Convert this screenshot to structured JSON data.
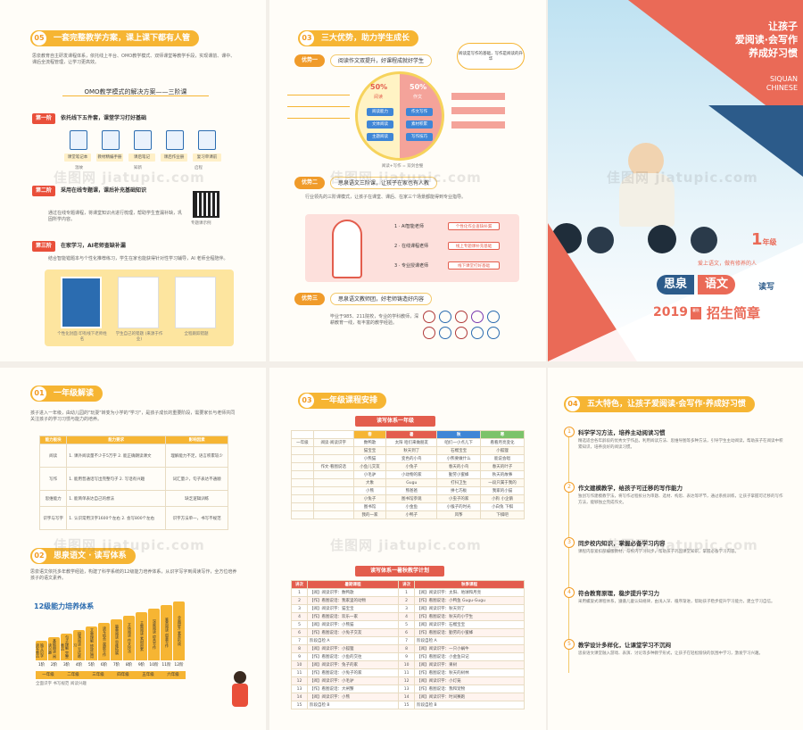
{
  "panel1": {
    "section_num": "05",
    "section_title": "一套完整教学方案，课上课下都有人管",
    "intro": "思泉教育自主研发课程体系，依托线上平台、OMO教学模式、双师课堂等教学手段，实现课前、课中、课后全流程管理，让学习更高效。",
    "omo_title": "OMO教学模式的解决方案——三阶课",
    "stage1_tag": "第一阶",
    "stage1_label": "依托线下五件套，课堂学习打好基础",
    "stage1_items": [
      "课堂笔记",
      "课前预习",
      "课堂练习",
      "课后作业",
      "复习单"
    ],
    "stage1_tags": [
      "课堂笔记本",
      "教材精编手册",
      "课后笔记",
      "课后作业册",
      "复习单课前"
    ],
    "stage1_tags2": [
      "温故",
      "知新",
      "启程"
    ],
    "stage2_tag": "第二阶",
    "stage2_label": "采用在线专题课，课后补充基础知识",
    "stage2_desc": "通过在线专题课程，将课堂知识点进行梳理，帮助学生查漏补缺，巩固所学内容。",
    "qr_caption": "专题课示例",
    "stage3_tag": "第三阶",
    "stage3_label": "在家学习，AI老师查缺补漏",
    "stage3_desc": "结合智能错题本与个性化推荐练习，学生在家也能获得针对性学习辅导，AI 老师全程陪伴。",
    "book_captions": [
      "个性化封面 印有线下老师姓名",
      "学生自己的错题 (来源于作业)",
      "全程跟踪错题"
    ]
  },
  "panel2": {
    "section_num": "03",
    "section_title": "三大优势，助力学生成长",
    "adv1_tag": "优势一",
    "adv1_desc": "阅读作文双提升，好课程成就好学生",
    "bubble": "阅读是写作的基础，写作是阅读的升华",
    "pct_left": "50%",
    "pct_right": "50%",
    "left_label": "阅读",
    "right_label": "作文",
    "left_chips": [
      "阅读能力",
      "文体阅读",
      "主题阅读"
    ],
    "right_chips": [
      "作文写作",
      "素材积累",
      "写作技巧"
    ],
    "center_caption": "阅读+写作 = 双剑合璧",
    "adv2_tag": "优势二",
    "adv2_desc": "思泉语文三阶课，让孩子在家也有人教",
    "adv2_text": "行业领先的三阶课模式，让孩子在课堂、课后、在家三个场景都能得到专业指导。",
    "rocket_steps": [
      {
        "num": "1",
        "who": "AI智能老师",
        "what": "个性化作业查缺补漏"
      },
      {
        "num": "2",
        "who": "在线课程老师",
        "what": "线上专题课补充基础"
      },
      {
        "num": "3",
        "who": "专业授课老师",
        "what": "线下课堂打好基础"
      }
    ],
    "adv3_tag": "优势三",
    "adv3_desc": "思泉语文教师团，好老师铸造好内容",
    "adv3_text": "毕业于985、211院校，专业的学科教师，深耕教育一线，有丰富的教学经验。"
  },
  "panel3": {
    "slogan_line1": "让孩子",
    "slogan_line2": "爱阅读·会写作",
    "slogan_line3": "养成好习惯",
    "brand_en1": "SIQUAN",
    "brand_en2": "CHINESE",
    "grade_num": "1",
    "grade_unit": "年级",
    "tagline": "爱上语文，做有修养的人",
    "brand_cn1": "思泉",
    "brand_cn2": "语文",
    "brand_sub": "读写",
    "year": "2019",
    "season": "暑秋",
    "brochure": "招生简章"
  },
  "panel4": {
    "section1_num": "01",
    "section1_title": "一年级解读",
    "section1_text": "孩子进入一年级，由幼儿园的\"玩耍\"转变为小学的\"学习\"，是孩子成长的重要阶段，需要家长与老师共同关注孩子的学习习惯与能力的培养。",
    "table_headers": [
      "能力板块",
      "能力要求",
      "影响因素"
    ],
    "table_rows": [
      [
        "阅读",
        "1. 课外阅读量不少于5万字 2. 能正确朗读课文",
        "理解能力不足，语言积累较少"
      ],
      [
        "写作",
        "1. 能用普通话写出完整句子 2. 写话有兴趣",
        "词汇量少，句子表达不通顺"
      ],
      [
        "思维能力",
        "1. 能简单表达自己的想法",
        "缺乏逻辑训练"
      ],
      [
        "识字与写字",
        "1. 认识常用汉字1600个左右 2. 会写800个左右",
        "识字方法单一，书写不规范"
      ]
    ],
    "section2_num": "02",
    "section2_title": "思泉语文 · 读写体系",
    "section2_text": "思泉语文依托多年教学经验，构建了科学系统的12级能力培养体系，从识字写字到阅读写作，全方位培养孩子的语文素养。",
    "levels_title": "12级能力培养体系",
    "levels": [
      "1阶",
      "2阶",
      "3阶",
      "4阶",
      "5阶",
      "6阶",
      "7阶",
      "8阶",
      "9阶",
      "10阶",
      "11阶",
      "12阶"
    ],
    "level_skills": [
      "独立识字 读写表达",
      "基础朗读 阅读兴趣",
      "句子理解 完整表达",
      "段落阅读 写话练习",
      "文章理解 修辞运用",
      "读写结合 观察写作",
      "篇章阅读 思维拓展",
      "文体阅读 作文技法",
      "主题阅读 素材积累",
      "深度阅读 综合写作",
      "鉴赏阅读 创意写作",
      "全面提升 素养形成"
    ],
    "grades": [
      "一年级",
      "二年级",
      "三年级",
      "四年级",
      "五年级",
      "六年级"
    ],
    "grade_desc": "全面识字 书写规范 阅读兴趣"
  },
  "panel5": {
    "section_num": "03",
    "section_title": "一年级课程安排",
    "table1_title": "读写体系一年级",
    "table1_headers": [
      "",
      "",
      "春",
      "暑",
      "秋",
      "寒"
    ],
    "table1_rows": [
      [
        "一年级",
        "阅读·阅读识字",
        "数鸭歌",
        "太阳 咱们来做朋友",
        "咱们一小点儿下",
        "看看月亮变化"
      ],
      [
        "",
        "",
        "猫宝宝",
        "秋天到了",
        "石榴宝宝",
        "小狐狸"
      ],
      [
        "",
        "",
        "小熊猫",
        "变色的小鸟",
        "小熊要做什么",
        "能说会唱"
      ],
      [
        "",
        "作文·看图说话",
        "小鱼儿交友",
        "小兔子",
        "春天的小鸟",
        "春天的叶子"
      ],
      [
        "",
        "",
        "小毛驴",
        "小动物的家",
        "勤劳小蜜蜂",
        "秋天的故事"
      ],
      [
        "",
        "",
        "大象",
        "Gugu",
        "打扫卫生",
        "一段只属于我的"
      ],
      [
        "",
        "",
        "小熊",
        "熊爸爸",
        "拼七巧板",
        "我家的小猫"
      ],
      [
        "",
        "",
        "小兔子",
        "图书馆参观",
        "小虫子的家",
        "小狗 小企鹅"
      ],
      [
        "",
        "",
        "图书馆",
        "小金鱼",
        "小猴子的时光",
        "小白兔 下棋"
      ],
      [
        "",
        "",
        "我的一家",
        "小鸭子",
        "风筝",
        "下棋吧"
      ]
    ],
    "table2_title": "读写体系一暑秋教学计划",
    "table2_headers": [
      "讲次",
      "暑期课程",
      "讲次",
      "秋季课程"
    ],
    "table2_rows": [
      [
        "1",
        "【阅】阅读识字：数鸭歌",
        "1",
        "【阅】阅读识字：太阳、地球和月亮"
      ],
      [
        "2",
        "【作】看图说话：我家里的动物",
        "2",
        "【作】看图说话：小鸭鱼 Gugu-Gugu"
      ],
      [
        "3",
        "【阅】阅读识字：猫宝宝",
        "3",
        "【阅】阅读识字：秋天到了"
      ],
      [
        "4",
        "【作】看图说话：欢乐一家",
        "4",
        "【作】看图说话：秋天的小学生"
      ],
      [
        "5",
        "【阅】阅读识字：小熊猫",
        "5",
        "【阅】阅读识字：石榴宝宝"
      ],
      [
        "6",
        "【作】看图说话：小兔子交友",
        "6",
        "【作】看图说话：勤劳的小蜜蜂"
      ],
      [
        "7",
        "阶段自检 A",
        "7",
        "阶段自检 A"
      ],
      [
        "8",
        "【阅】阅读识字：小狐狸",
        "8",
        "【阅】阅读识字：一只小蜗牛"
      ],
      [
        "9",
        "【作】看图说话：小鱼的交往",
        "9",
        "【作】看图说话：小金鱼日记"
      ],
      [
        "10",
        "【阅】阅读识字：兔子的家",
        "10",
        "【阅】阅读识字：果树"
      ],
      [
        "11",
        "【作】看图说话：小兔子的家",
        "11",
        "【作】看图说话：秋天的树林"
      ],
      [
        "12",
        "【阅】阅读识字：小毛驴",
        "12",
        "【阅】阅读识字：小灯笼"
      ],
      [
        "13",
        "【作】看图说话：大闸蟹",
        "13",
        "【作】看图说话：我和宠物"
      ],
      [
        "14",
        "【阅】阅读识字：小熊",
        "14",
        "【阅】阅读识字：时间赛跑"
      ],
      [
        "15",
        "阶段自检 B",
        "15",
        "阶段自检 B"
      ]
    ]
  },
  "panel6": {
    "section_num": "04",
    "section_title": "五大特色，让孩子爱阅读·会写作·养成好习惯",
    "features": [
      {
        "num": "1",
        "title": "科学学习方法，培养主动阅读习惯",
        "desc": "精选适合各年龄段的优秀文学作品，利用阅读方法、思维导图等多种方法，引导学生主动阅读，帮助孩子在阅读中积累知识，培养良好的阅读习惯。"
      },
      {
        "num": "2",
        "title": "作文建模教学，给孩子可迁移的写作能力",
        "desc": "独创写作建模教学法，将写作过程拆分为审题、选材、构思、表达等环节，通过系统训练，让孩子掌握可迁移的写作方法，能够独立完成作文。"
      },
      {
        "num": "3",
        "title": "同步校内知识，掌握必备学习内容",
        "desc": "课程内容紧扣部编版教材，与校内学习同步，帮助孩子巩固课堂知识，掌握必备学习内容。"
      },
      {
        "num": "4",
        "title": "符合教育原理，稳步提升学习力",
        "desc": "采用螺旋式课程体系，遵循儿童认知规律，由浅入深、循序渐进，帮助孩子稳步提升学习能力，建立学习自信。"
      },
      {
        "num": "5",
        "title": "教学设计多样化，让课堂学习不沉闷",
        "desc": "思泉语文课堂融入游戏、表演、讨论等多种教学形式，让孩子在轻松愉快的氛围中学习，激发学习兴趣。"
      }
    ]
  },
  "watermark": "佳图网 jiatupic.com",
  "colors": {
    "accent": "#f6b533",
    "red": "#e35d4d",
    "coral": "#ea6a57",
    "blue": "#2b6cb0"
  }
}
